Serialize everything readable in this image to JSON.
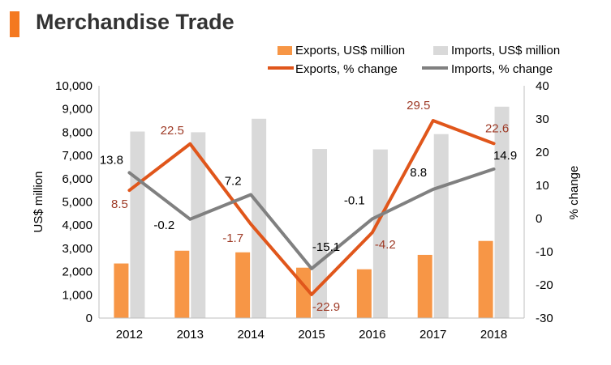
{
  "title": "Merchandise Trade",
  "colors": {
    "accent": "#f47920",
    "exports_bar": "#f79646",
    "imports_bar": "#d9d9d9",
    "exports_line": "#e0561b",
    "imports_line": "#808080",
    "exports_label": "#9e3a26",
    "imports_label": "#000000"
  },
  "chart_data": {
    "type": "bar",
    "categories": [
      "2012",
      "2013",
      "2014",
      "2015",
      "2016",
      "2017",
      "2018"
    ],
    "series": [
      {
        "name": "Exports, US$ million",
        "type": "bar",
        "axis": "left",
        "values": [
          2350,
          2900,
          2830,
          2170,
          2100,
          2720,
          3320
        ]
      },
      {
        "name": "Imports, US$ million",
        "type": "bar",
        "axis": "left",
        "values": [
          8030,
          8000,
          8580,
          7280,
          7260,
          7920,
          9100
        ]
      },
      {
        "name": "Exports, % change",
        "type": "line",
        "axis": "right",
        "values": [
          8.5,
          22.5,
          -1.7,
          -22.9,
          -4.2,
          29.5,
          22.6
        ],
        "labels": [
          "8.5",
          "22.5",
          "-1.7",
          "-22.9",
          "-4.2",
          "29.5",
          "22.6"
        ]
      },
      {
        "name": "Imports, % change",
        "type": "line",
        "axis": "right",
        "values": [
          13.8,
          -0.2,
          7.2,
          -15.1,
          -0.1,
          8.8,
          14.9
        ],
        "labels": [
          "13.8",
          "-0.2",
          "7.2",
          "-15.1",
          "-0.1",
          "8.8",
          "14.9"
        ]
      }
    ],
    "ylabel": "US$ million",
    "ylabel_right": "% change",
    "ylim": [
      0,
      10000
    ],
    "ylim_right": [
      -30,
      40
    ],
    "yticks": [
      "0",
      "1,000",
      "2,000",
      "3,000",
      "4,000",
      "5,000",
      "6,000",
      "7,000",
      "8,000",
      "9,000",
      "10,000"
    ],
    "yticks_right": [
      "-30",
      "-20",
      "-10",
      "0",
      "10",
      "20",
      "30",
      "40"
    ],
    "grid": false,
    "legend": "top-right"
  }
}
